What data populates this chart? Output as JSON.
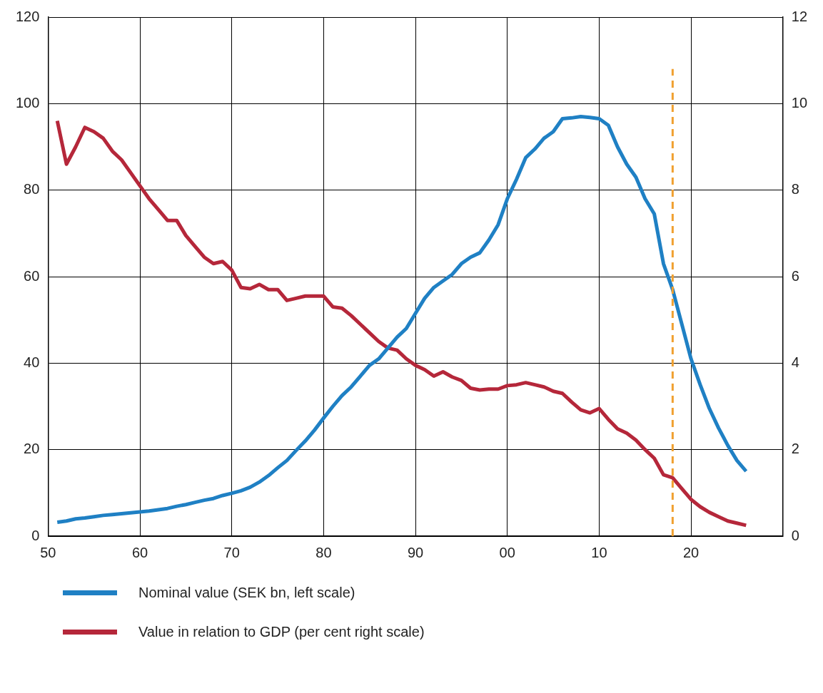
{
  "chart_data": {
    "type": "line",
    "x": [
      1951,
      1952,
      1953,
      1954,
      1955,
      1956,
      1957,
      1958,
      1959,
      1960,
      1961,
      1962,
      1963,
      1964,
      1965,
      1966,
      1967,
      1968,
      1969,
      1970,
      1971,
      1972,
      1973,
      1974,
      1975,
      1976,
      1977,
      1978,
      1979,
      1980,
      1981,
      1982,
      1983,
      1984,
      1985,
      1986,
      1987,
      1988,
      1989,
      1990,
      1991,
      1992,
      1993,
      1994,
      1995,
      1996,
      1997,
      1998,
      1999,
      2000,
      2001,
      2002,
      2003,
      2004,
      2005,
      2006,
      2007,
      2008,
      2009,
      2010,
      2011,
      2012,
      2013,
      2014,
      2015,
      2016,
      2017,
      2018,
      2019,
      2020,
      2021,
      2022,
      2023,
      2024,
      2025,
      2026
    ],
    "series": [
      {
        "name": "Nominal value (SEK bn, left scale)",
        "color": "#1f80c4",
        "values": [
          3.2,
          3.5,
          4,
          4.2,
          4.5,
          4.8,
          5,
          5.2,
          5.4,
          5.6,
          5.8,
          6.1,
          6.4,
          6.9,
          7.3,
          7.8,
          8.3,
          8.7,
          9.4,
          9.9,
          10.5,
          11.3,
          12.5,
          14,
          15.8,
          17.5,
          19.8,
          22,
          24.5,
          27.3,
          30,
          32.5,
          34.5,
          37,
          39.5,
          41,
          43.5,
          46,
          48,
          51.5,
          55,
          57.5,
          59,
          60.5,
          63,
          64.5,
          65.5,
          68.5,
          72,
          78,
          82.5,
          87.5,
          89.5,
          92,
          93.5,
          96.5,
          96.7,
          97,
          96.8,
          96.5,
          95,
          90,
          86,
          83,
          78,
          74.5,
          63,
          57,
          49,
          41,
          35,
          29.5,
          25,
          21,
          17.5,
          15
        ]
      },
      {
        "name": "Value in relation to GDP (per cent right scale)",
        "color": "#b5273a",
        "axis": "y2",
        "values": [
          9.6,
          8.6,
          9.0,
          9.45,
          9.35,
          9.2,
          8.9,
          8.7,
          8.4,
          8.1,
          7.8,
          7.55,
          7.3,
          7.3,
          6.95,
          6.7,
          6.45,
          6.3,
          6.35,
          6.15,
          5.75,
          5.72,
          5.82,
          5.7,
          5.7,
          5.45,
          5.5,
          5.55,
          5.55,
          5.55,
          5.3,
          5.27,
          5.1,
          4.9,
          4.7,
          4.5,
          4.35,
          4.3,
          4.1,
          3.95,
          3.85,
          3.7,
          3.8,
          3.68,
          3.6,
          3.42,
          3.38,
          3.4,
          3.4,
          3.48,
          3.5,
          3.55,
          3.5,
          3.45,
          3.35,
          3.3,
          3.1,
          2.92,
          2.85,
          2.95,
          2.7,
          2.48,
          2.38,
          2.22,
          2.0,
          1.8,
          1.42,
          1.35,
          1.1,
          0.85,
          0.68,
          0.55,
          0.45,
          0.35,
          0.3,
          0.25
        ]
      }
    ],
    "xlim": [
      1950,
      2030
    ],
    "xticks": [
      {
        "value": 1950,
        "label": "50"
      },
      {
        "value": 1960,
        "label": "60"
      },
      {
        "value": 1970,
        "label": "70"
      },
      {
        "value": 1980,
        "label": "80"
      },
      {
        "value": 1990,
        "label": "90"
      },
      {
        "value": 2000,
        "label": "00"
      },
      {
        "value": 2010,
        "label": "10"
      },
      {
        "value": 2020,
        "label": "20"
      },
      {
        "value": 2030,
        "label": null
      }
    ],
    "ylim": [
      0,
      120
    ],
    "yticks": [
      0,
      20,
      40,
      60,
      80,
      100,
      120
    ],
    "y2lim": [
      0,
      12
    ],
    "y2ticks": [
      0,
      2,
      4,
      6,
      8,
      10,
      12
    ],
    "ref_lines": [
      {
        "axis": "x",
        "value": 2018,
        "color": "#f0a030",
        "line_style": "dashed"
      }
    ],
    "grid": true,
    "legend": "bottom",
    "marker": "none",
    "line_style": "solid"
  }
}
